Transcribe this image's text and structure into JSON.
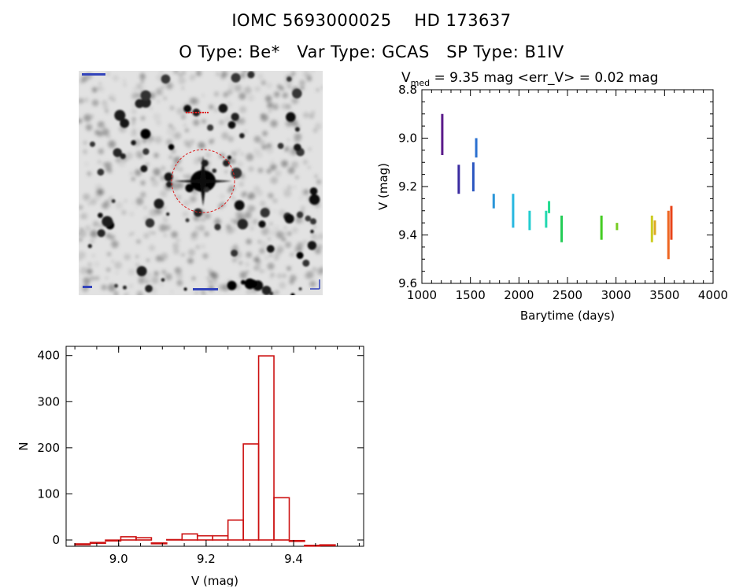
{
  "header": {
    "line1": "IOMC 5693000025    HD 173637",
    "line2": "O Type: Be*   Var Type: GCAS   SP Type: B1IV"
  },
  "lightcurve_header": {
    "v_symbol": "V",
    "v_subscript": "med",
    "text": " = 9.35 mag <err_V> = 0.02 mag"
  },
  "colors": {
    "histogram_bar": "#cc1111",
    "finder_marker": "#dd2222",
    "axes": "#000000"
  },
  "chart_data": [
    {
      "type": "scatter",
      "xlabel": "Barytime (days)",
      "ylabel": "V (mag)",
      "xlim": [
        1000,
        4000
      ],
      "ylim": [
        9.6,
        8.8
      ],
      "y_inverted": true,
      "x_ticks": [
        1000,
        1500,
        2000,
        2500,
        3000,
        3500,
        4000
      ],
      "x_tick_labels": [
        "1000",
        "1500",
        "2000",
        "2500",
        "3000",
        "3500",
        "4000"
      ],
      "y_ticks": [
        8.8,
        9.0,
        9.2,
        9.4,
        9.6
      ],
      "y_tick_labels": [
        "8.8",
        "9.0",
        "9.2",
        "9.4",
        "9.6"
      ],
      "colormap": "rainbow (color by time)",
      "groups": [
        {
          "x": 1210,
          "y_min": 8.9,
          "y_max": 9.07,
          "color": "#5a1a8a"
        },
        {
          "x": 1380,
          "y_min": 9.11,
          "y_max": 9.23,
          "color": "#3a2aa0"
        },
        {
          "x": 1530,
          "y_min": 9.1,
          "y_max": 9.22,
          "color": "#2a55c0"
        },
        {
          "x": 1560,
          "y_min": 9.0,
          "y_max": 9.08,
          "color": "#2a70d0"
        },
        {
          "x": 1740,
          "y_min": 9.23,
          "y_max": 9.29,
          "color": "#2a95d8"
        },
        {
          "x": 1940,
          "y_min": 9.23,
          "y_max": 9.37,
          "color": "#28b8e0"
        },
        {
          "x": 2110,
          "y_min": 9.3,
          "y_max": 9.38,
          "color": "#22cdd0"
        },
        {
          "x": 2280,
          "y_min": 9.3,
          "y_max": 9.37,
          "color": "#22d8b0"
        },
        {
          "x": 2310,
          "y_min": 9.26,
          "y_max": 9.31,
          "color": "#22dc90"
        },
        {
          "x": 2440,
          "y_min": 9.32,
          "y_max": 9.43,
          "color": "#22cc55"
        },
        {
          "x": 2850,
          "y_min": 9.32,
          "y_max": 9.42,
          "color": "#44cc22"
        },
        {
          "x": 3010,
          "y_min": 9.35,
          "y_max": 9.38,
          "color": "#77cc22"
        },
        {
          "x": 3370,
          "y_min": 9.32,
          "y_max": 9.43,
          "color": "#cccc22"
        },
        {
          "x": 3400,
          "y_min": 9.34,
          "y_max": 9.4,
          "color": "#ddaa22"
        },
        {
          "x": 3540,
          "y_min": 9.3,
          "y_max": 9.5,
          "color": "#ee6622"
        },
        {
          "x": 3570,
          "y_min": 9.28,
          "y_max": 9.42,
          "color": "#e84418"
        }
      ]
    },
    {
      "type": "bar",
      "subtype": "histogram",
      "xlabel": "V (mag)",
      "ylabel": "N",
      "xlim": [
        8.88,
        9.56
      ],
      "ylim": [
        0,
        420
      ],
      "x_ticks": [
        9.0,
        9.2,
        9.4
      ],
      "x_tick_labels": [
        "9.0",
        "9.2",
        "9.4"
      ],
      "y_ticks": [
        0,
        100,
        200,
        300,
        400
      ],
      "y_tick_labels": [
        "0",
        "100",
        "200",
        "300",
        "400"
      ],
      "bin_width": 0.035,
      "bin_start": 8.9,
      "values": [
        5,
        8,
        13,
        20,
        18,
        7,
        14,
        26,
        22,
        22,
        55,
        215,
        400,
        102,
        12,
        2,
        3
      ]
    }
  ]
}
